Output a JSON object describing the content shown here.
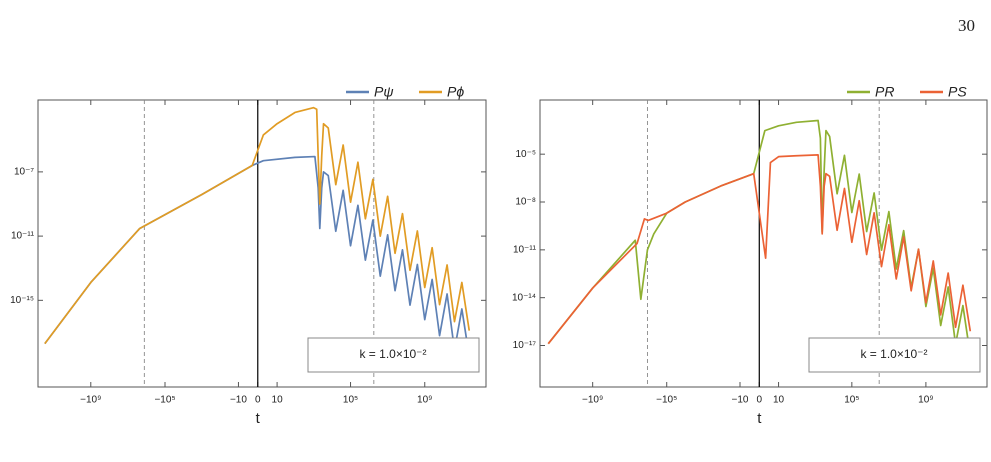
{
  "page_number": "30",
  "chart_data": [
    {
      "type": "line",
      "xlabel": "t",
      "xscale": "symlog",
      "yscale": "log",
      "xlim": [
        -700000000000.0,
        2000000000000.0
      ],
      "ylim": [
        4e-21,
        0.003
      ],
      "xticks": [
        {
          "value": -1000000000.0,
          "label": "−10⁹"
        },
        {
          "value": -100000.0,
          "label": "−10⁵"
        },
        {
          "value": -10,
          "label": "−10"
        },
        0,
        10,
        {
          "value": 100000.0,
          "label": "10⁵"
        },
        {
          "value": 1000000000.0,
          "label": "10⁹"
        }
      ],
      "yticks": [
        {
          "value": 1e-07,
          "label": "10⁻⁷"
        },
        {
          "value": 1e-11,
          "label": "10⁻¹¹"
        },
        {
          "value": 1e-15,
          "label": "10⁻¹⁵"
        }
      ],
      "reference_lines": [
        -1300000.0,
        1800000.0
      ],
      "annotation": "k = 1.0×10⁻²",
      "legend": "top-right-outside",
      "series": [
        {
          "name": "Pψ",
          "color": "#5e81b5",
          "x": [
            -300000000000.0,
            -1000000000.0,
            -2300000.0,
            -1000,
            -1,
            1,
            100,
            1200,
            1800,
            2200,
            2800,
            3500,
            6300.0,
            16000.0,
            40000.0,
            100000.0,
            250000.0,
            630000.0,
            1600000.0,
            4000000.0,
            10000000.0,
            25000000.0,
            63000000.0,
            160000000.0,
            400000000.0,
            1000000000.0,
            2500000000.0,
            6300000000.0,
            16000000000.0,
            40000000000.0,
            100000000000.0,
            250000000000.0
          ],
          "values": [
            2e-18,
            1.3e-14,
            3e-11,
            4e-09,
            2.5e-07,
            5e-07,
            8e-07,
            9e-07,
            1e-08,
            3e-11,
            1e-08,
            1e-07,
            5.9e-08,
            2e-11,
            7.1e-09,
            2.5e-12,
            8.3e-10,
            3.2e-13,
            1e-10,
            3.2e-14,
            1.2e-11,
            4e-15,
            1.4e-12,
            5e-16,
            1.7e-13,
            6.3e-17,
            2e-14,
            6.3e-18,
            2.5e-15,
            7.9e-19,
            2.9e-16,
            3.2e-19
          ]
        },
        {
          "name": "Pϕ",
          "color": "#e19c24",
          "x": [
            -300000000000.0,
            -1000000000.0,
            -2300000.0,
            -1000,
            -1,
            1,
            10,
            100,
            1000,
            1500,
            1800,
            2200,
            2800,
            3500,
            6300.0,
            16000.0,
            40000.0,
            100000.0,
            250000.0,
            630000.0,
            1600000.0,
            4000000.0,
            10000000.0,
            25000000.0,
            63000000.0,
            160000000.0,
            400000000.0,
            1000000000.0,
            2500000000.0,
            6300000000.0,
            16000000000.0,
            40000000000.0,
            100000000000.0,
            250000000000.0
          ],
          "values": [
            2e-18,
            1.3e-14,
            3e-11,
            4e-09,
            2.5e-07,
            2e-05,
            0.0001,
            0.0005,
            0.001,
            0.0008,
            1e-06,
            1e-09,
            1e-06,
            0.0001,
            5.4e-05,
            1.6e-08,
            4.7e-06,
            1.3e-09,
            4e-07,
            1.2e-10,
            3.4e-08,
            1e-11,
            3e-09,
            8.5e-13,
            2.5e-10,
            7.4e-14,
            2.1e-11,
            6.3e-15,
            1.9e-12,
            5.4e-16,
            1.6e-13,
            4.7e-17,
            1.3e-14,
            1.3e-17
          ]
        }
      ]
    },
    {
      "type": "line",
      "xlabel": "t",
      "xscale": "symlog",
      "yscale": "log",
      "xlim": [
        -700000000000.0,
        2000000000000.0
      ],
      "ylim": [
        2.5e-20,
        0.025
      ],
      "xticks": [
        {
          "value": -1000000000.0,
          "label": "−10⁹"
        },
        {
          "value": -100000.0,
          "label": "−10⁵"
        },
        {
          "value": -10,
          "label": "−10"
        },
        0,
        10,
        {
          "value": 100000.0,
          "label": "10⁵"
        },
        {
          "value": 1000000000.0,
          "label": "10⁹"
        }
      ],
      "yticks": [
        {
          "value": 1e-05,
          "label": "10⁻⁵"
        },
        {
          "value": 1e-08,
          "label": "10⁻⁸"
        },
        {
          "value": 1e-11,
          "label": "10⁻¹¹"
        },
        {
          "value": 1e-14,
          "label": "10⁻¹⁴"
        },
        {
          "value": 1e-17,
          "label": "10⁻¹⁷"
        }
      ],
      "reference_lines": [
        -1100000.0,
        3000000.0
      ],
      "annotation": "k = 1.0×10⁻²",
      "legend": "top-right-outside",
      "series": [
        {
          "name": "PR",
          "color": "#8fb032",
          "x": [
            -250000000000.0,
            -1000000000.0,
            -5000000.0,
            -2500000.0,
            -1100000.0,
            -500000.0,
            -100000.0,
            -10000.0,
            -100,
            -1,
            1,
            10,
            100,
            1500,
            2000,
            2500,
            3200,
            4000,
            6300.0,
            16000.0,
            40000.0,
            100000.0,
            250000.0,
            630000.0,
            1600000.0,
            4000000.0,
            10000000.0,
            25000000.0,
            63000000.0,
            160000000.0,
            400000000.0,
            1000000000.0,
            2500000000.0,
            6300000000.0,
            16000000000.0,
            40000000000.0,
            100000000000.0,
            250000000000.0
          ],
          "values": [
            1.3e-17,
            4e-14,
            4e-11,
            8e-15,
            1e-11,
            1e-10,
            2e-09,
            1e-08,
            1.1e-07,
            6e-07,
            0.0003,
            0.0006,
            0.001,
            0.0013,
            0.0001,
            1.3e-10,
            1e-06,
            0.0003,
            0.00013,
            3.3e-08,
            8.5e-06,
            2.2e-09,
            5.6e-07,
            1.4e-10,
            3.7e-08,
            9.5e-12,
            2.5e-09,
            6.3e-13,
            1.6e-10,
            4.2e-14,
            1.1e-11,
            2.8e-15,
            7e-13,
            1.8e-16,
            4.7e-14,
            1.2e-17,
            3.2e-15,
            2.5e-18
          ]
        },
        {
          "name": "PS",
          "color": "#eb6235",
          "x": [
            -250000000000.0,
            -1000000000.0,
            -4000000.0,
            -1600000.0,
            -1000000.0,
            -100000.0,
            -10000.0,
            -100,
            -1,
            1.2,
            3,
            10,
            100,
            1500,
            2000,
            2500,
            3200,
            4000,
            6300.0,
            16000.0,
            40000.0,
            100000.0,
            250000.0,
            630000.0,
            1600000.0,
            4000000.0,
            10000000.0,
            25000000.0,
            63000000.0,
            160000000.0,
            400000000.0,
            1000000000.0,
            2500000000.0,
            6300000000.0,
            16000000000.0,
            40000000000.0,
            100000000000.0,
            250000000000.0
          ],
          "values": [
            1.3e-17,
            4e-14,
            2.5e-11,
            8.7e-10,
            7e-10,
            2e-09,
            1e-08,
            1.1e-07,
            6e-07,
            3e-12,
            3e-06,
            7e-06,
            8e-06,
            9e-06,
            1e-07,
            1e-10,
            1e-07,
            6e-07,
            4.1e-07,
            1.7e-10,
            7.1e-08,
            3e-11,
            1.2e-08,
            5.1e-12,
            2.1e-09,
            8.9e-13,
            3.7e-10,
            1.5e-13,
            6.5e-11,
            2.7e-14,
            1.1e-11,
            4.8e-15,
            2e-12,
            8.3e-16,
            3.5e-13,
            1.4e-16,
            6e-14,
            7.9e-17
          ]
        }
      ]
    }
  ]
}
